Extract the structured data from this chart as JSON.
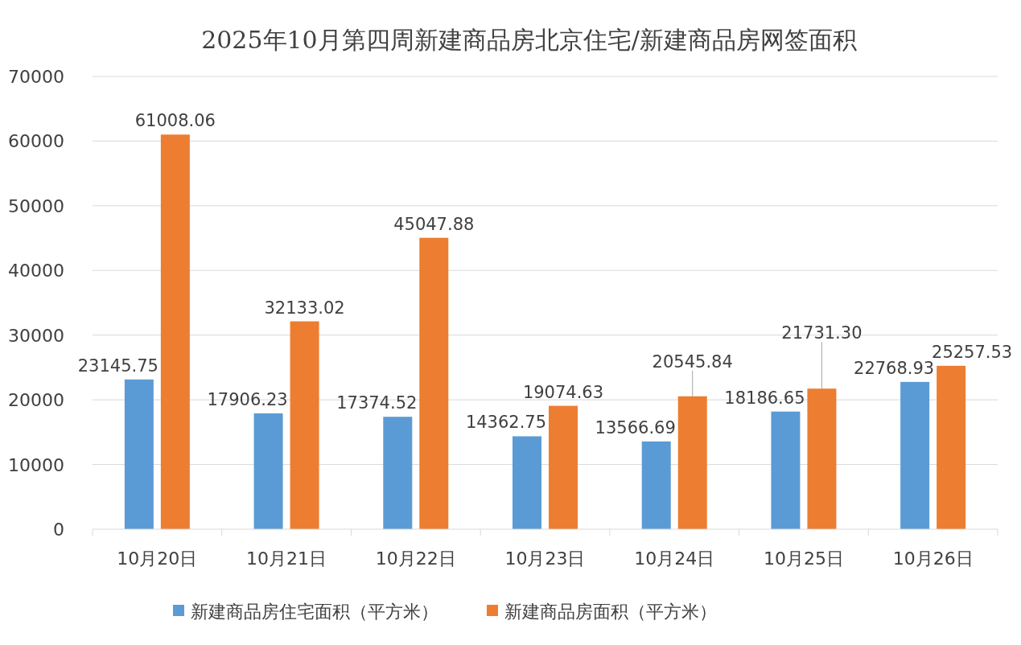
{
  "chart_data": {
    "type": "bar",
    "title": "2025年10月第四周新建商品房北京住宅/新建商品房网签面积",
    "categories": [
      "10月20日",
      "10月21日",
      "10月22日",
      "10月23日",
      "10月24日",
      "10月25日",
      "10月26日"
    ],
    "series": [
      {
        "name": "新建商品房住宅面积（平方米）",
        "color": "#5b9bd5",
        "values": [
          23145.75,
          17906.23,
          17374.52,
          14362.75,
          13566.69,
          18186.65,
          22768.93
        ],
        "value_labels": [
          "23145.75",
          "17906.23",
          "17374.52",
          "14362.75",
          "13566.69",
          "18186.65",
          "22768.93"
        ]
      },
      {
        "name": "新建商品房面积（平方米）",
        "color": "#ed7d31",
        "values": [
          61008.06,
          32133.02,
          45047.88,
          19074.63,
          20545.84,
          21731.3,
          25257.53
        ],
        "value_labels": [
          "61008.06",
          "32133.02",
          "45047.88",
          "19074.63",
          "20545.84",
          "21731.30",
          "25257.53"
        ]
      }
    ],
    "ylim": [
      0,
      70000
    ],
    "yticks": [
      0,
      10000,
      20000,
      30000,
      40000,
      50000,
      60000,
      70000
    ],
    "grid": "y",
    "legend": "bottom"
  }
}
